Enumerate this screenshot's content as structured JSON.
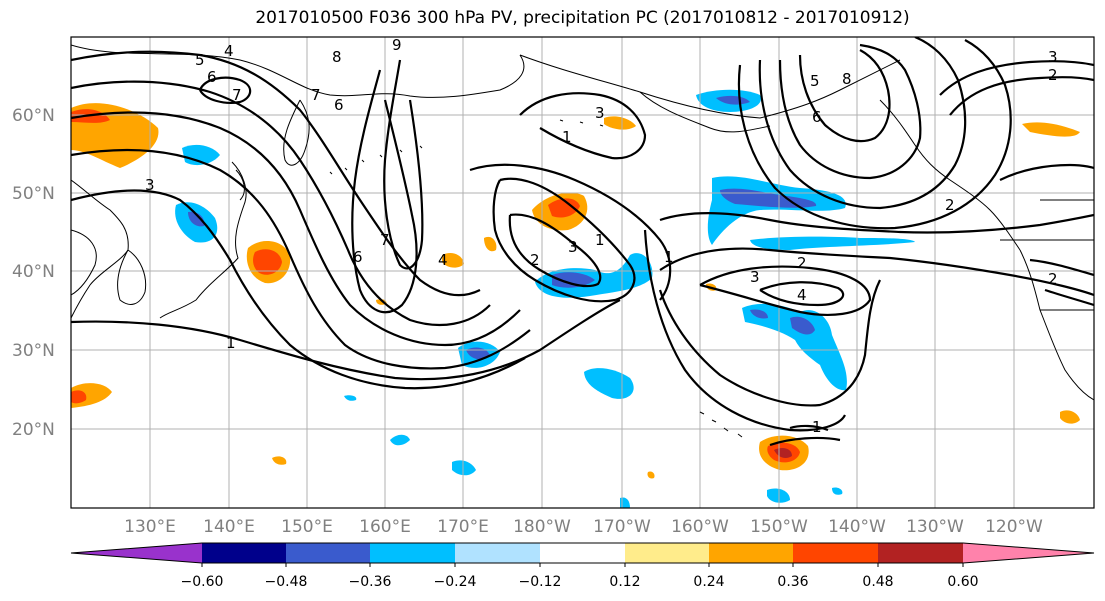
{
  "title": "2017010500 F036 300 hPa PV, precipitation PC (2017010812 - 2017010912)",
  "lat_labels": [
    "60°N",
    "50°N",
    "40°N",
    "30°N",
    "20°N"
  ],
  "lon_labels": [
    "130°E",
    "140°E",
    "150°E",
    "160°E",
    "170°E",
    "180°W",
    "170°W",
    "160°W",
    "150°W",
    "140°W",
    "130°W",
    "120°W"
  ],
  "colorbar": {
    "colors": [
      "#9932cc",
      "#00008b",
      "#3a5bcd",
      "#00bfff",
      "#b0e2ff",
      "#ffffff",
      "#ffec8b",
      "#ffa500",
      "#ff4500",
      "#b22222",
      "#ff82ab"
    ],
    "labels": [
      "−0.60",
      "−0.48",
      "−0.36",
      "−0.24",
      "−0.12",
      "0.12",
      "0.24",
      "0.36",
      "0.48",
      "0.60"
    ]
  },
  "contour_labels": [
    "4",
    "5",
    "6",
    "7",
    "8",
    "9",
    "7",
    "6",
    "3",
    "6",
    "7",
    "4",
    "1",
    "3",
    "1",
    "2",
    "3",
    "1",
    "1",
    "3",
    "4",
    "2",
    "2",
    "1",
    "2",
    "3",
    "2",
    "5",
    "6",
    "8"
  ],
  "colors": {
    "negative_mid": "#00bfff",
    "negative_strong": "#3a5bcd",
    "positive_mid": "#ffa500",
    "positive_strong": "#ff4500",
    "positive_peak": "#b22222",
    "grid": "#b0b0b0"
  }
}
